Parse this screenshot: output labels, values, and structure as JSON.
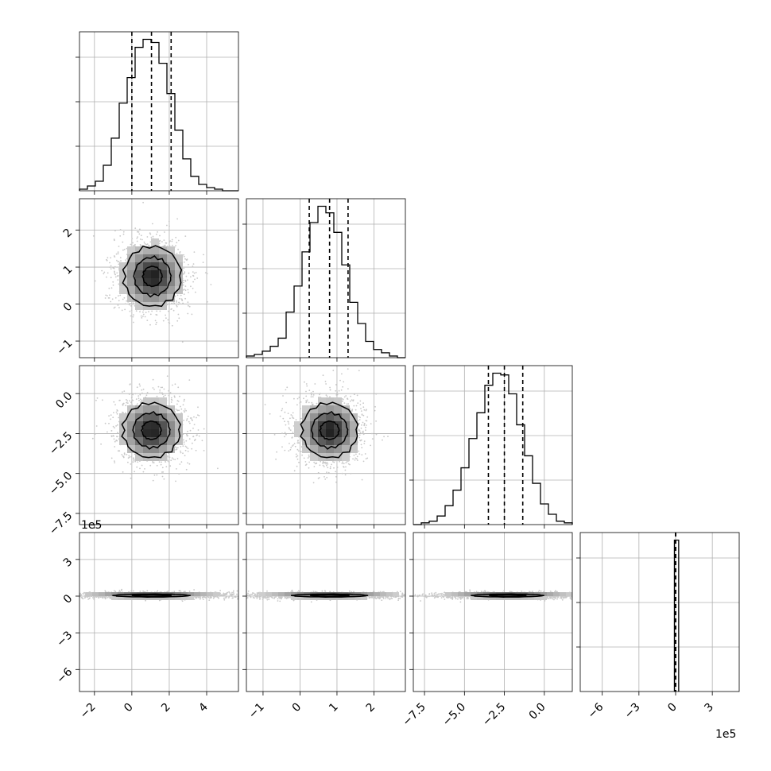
{
  "chart_data": {
    "type": "corner",
    "parameters": 4,
    "grid": true,
    "offset_labels": {
      "row3_y": "1e5",
      "col3_x": "1e5"
    },
    "axis_ranges": [
      [
        -2.8,
        5.7
      ],
      [
        -1.45,
        2.85
      ],
      [
        -8.2,
        1.75
      ],
      [
        -7.8,
        5.2
      ]
    ],
    "ticks": [
      {
        "values": [
          -2,
          0,
          2,
          4
        ],
        "labels": [
          "−2",
          "0",
          "2",
          "4"
        ]
      },
      {
        "values": [
          -1,
          0,
          1,
          2
        ],
        "labels": [
          "−1",
          "0",
          "1",
          "2"
        ]
      },
      {
        "values": [
          -7.5,
          -5.0,
          -2.5,
          0.0
        ],
        "labels": [
          "−7.5",
          "−5.0",
          "−2.5",
          "0.0"
        ]
      },
      {
        "values": [
          -6,
          -3,
          0,
          3
        ],
        "labels": [
          "−6",
          "−3",
          "0",
          "3"
        ]
      }
    ],
    "marginals": [
      {
        "bin_start": -2.8,
        "bin_width": 0.425,
        "counts": [
          1,
          3,
          6,
          16,
          33,
          55,
          71,
          90,
          95,
          93,
          80,
          61,
          38,
          20,
          9,
          4,
          2,
          1,
          0,
          0
        ],
        "quantiles": [
          0.0,
          1.05,
          2.1
        ]
      },
      {
        "bin_start": -1.45,
        "bin_width": 0.215,
        "counts": [
          1,
          2,
          4,
          7,
          12,
          28,
          44,
          65,
          83,
          93,
          89,
          77,
          57,
          34,
          21,
          10,
          5,
          3,
          1,
          0
        ],
        "quantiles": [
          0.25,
          0.8,
          1.3
        ]
      },
      {
        "bin_start": -8.2,
        "bin_width": 0.4975,
        "counts": [
          0,
          1,
          2,
          5,
          11,
          20,
          33,
          50,
          65,
          81,
          88,
          87,
          76,
          58,
          40,
          24,
          12,
          6,
          2,
          1
        ],
        "quantiles": [
          -3.5,
          -2.5,
          -1.35
        ]
      },
      {
        "bin_start": -0.1,
        "bin_width": 0.35,
        "counts": [
          100
        ],
        "quantiles": [
          0.0,
          0.0,
          0.0
        ]
      }
    ],
    "joint": [
      {
        "row": 1,
        "col": 0,
        "center": [
          1.1,
          0.75
        ],
        "spread": [
          0.85,
          0.45
        ],
        "contours": [
          0.6,
          1.15,
          1.8
        ],
        "rotation": 0
      },
      {
        "row": 2,
        "col": 0,
        "center": [
          1.05,
          -2.3
        ],
        "spread": [
          0.85,
          0.95
        ],
        "contours": [
          0.6,
          1.15,
          1.8
        ],
        "rotation": 0
      },
      {
        "row": 2,
        "col": 1,
        "center": [
          0.8,
          -2.3
        ],
        "spread": [
          0.42,
          0.95
        ],
        "contours": [
          0.6,
          1.15,
          1.8
        ],
        "rotation": 0
      },
      {
        "row": 3,
        "col": 0,
        "center": [
          1.05,
          0.05
        ],
        "spread": [
          2.0,
          0.12
        ],
        "contours": [
          0.5,
          1.0
        ],
        "rotation": 0
      },
      {
        "row": 3,
        "col": 1,
        "center": [
          0.8,
          0.05
        ],
        "spread": [
          1.0,
          0.12
        ],
        "contours": [
          0.5,
          1.0
        ],
        "rotation": 0
      },
      {
        "row": 3,
        "col": 2,
        "center": [
          -2.3,
          0.05
        ],
        "spread": [
          2.2,
          0.12
        ],
        "contours": [
          0.5,
          1.0
        ],
        "rotation": 0
      }
    ],
    "colors": {
      "line": "#000000",
      "grid": "#b0b0b0",
      "points": "#c8c8c8",
      "fill_dark": "#202020",
      "fill_light": "#e6e6e6"
    }
  }
}
